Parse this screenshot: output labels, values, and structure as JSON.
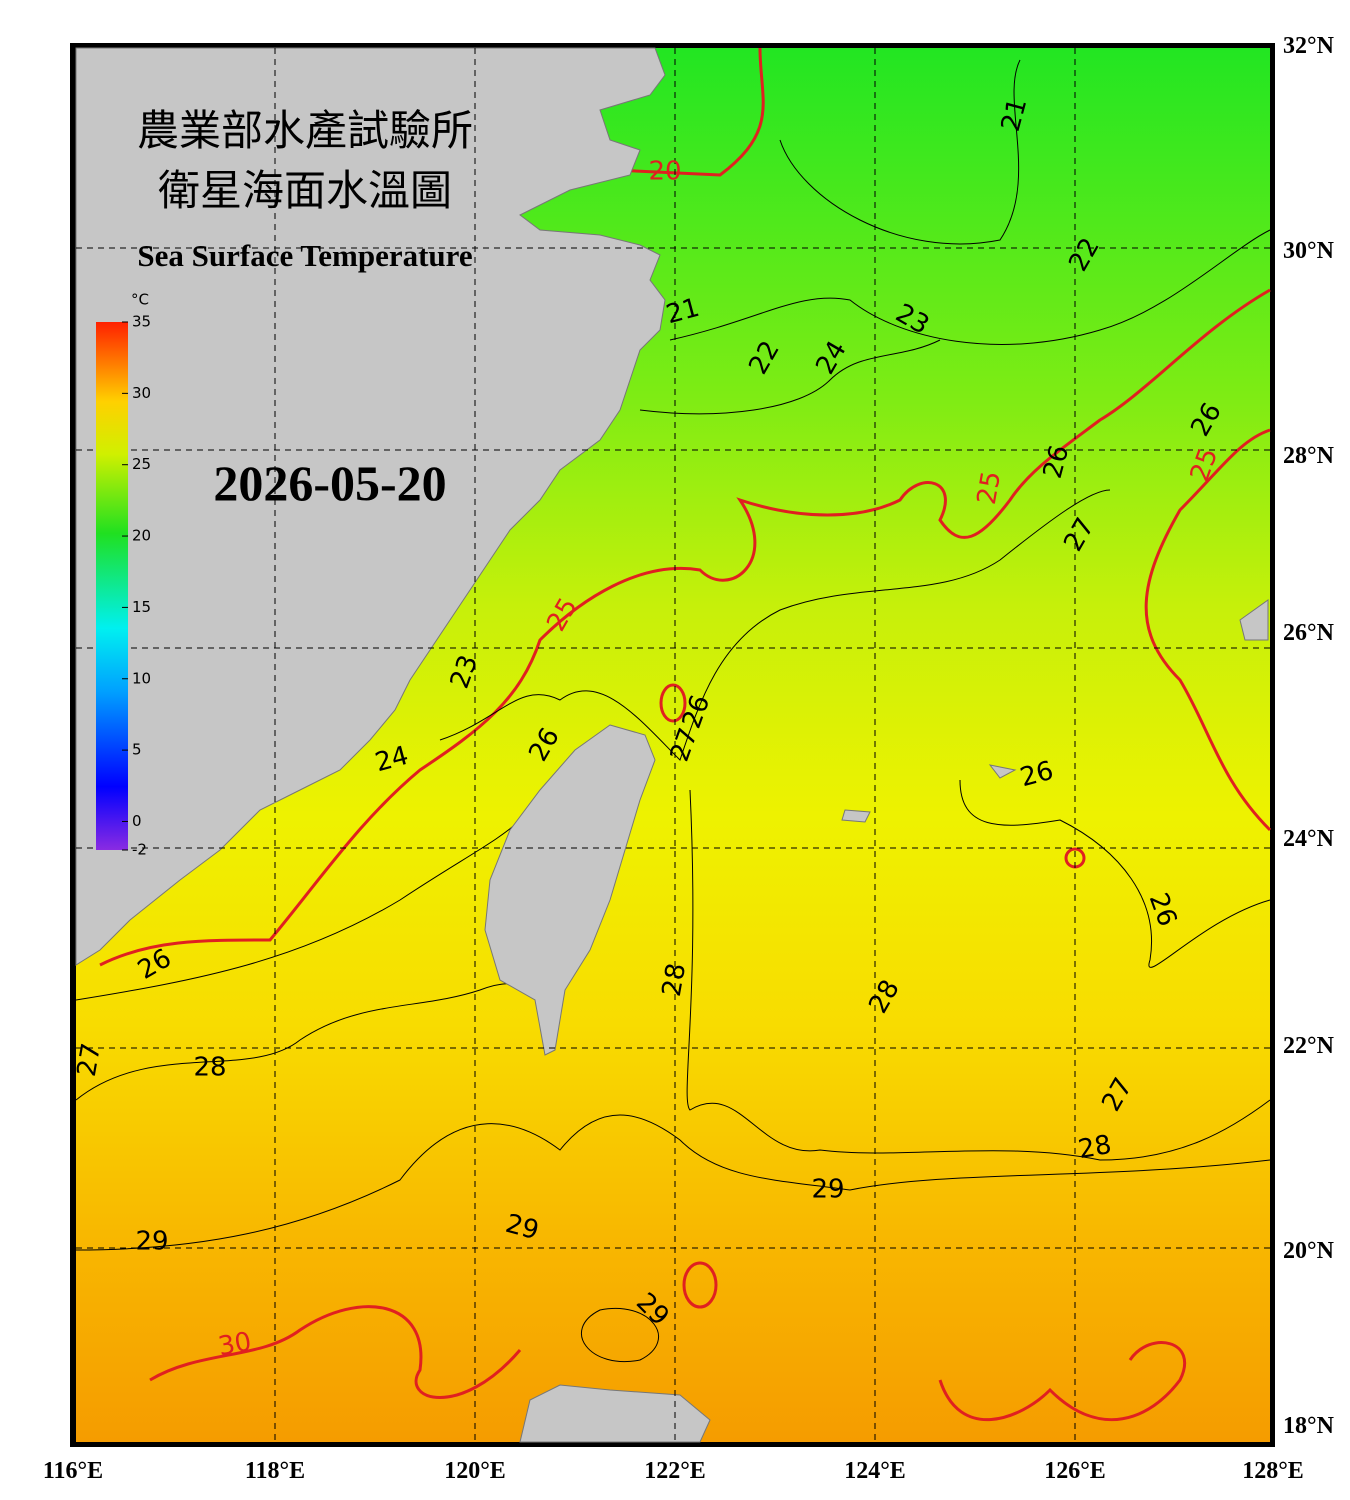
{
  "title": [
    "農業部水產試驗所",
    "衛星海面水溫圖"
  ],
  "subtitle": "Sea Surface Temperature",
  "date": "2026-05-20",
  "colorbar": {
    "unit": "°C",
    "lim": [
      -2,
      35
    ],
    "ticks": [
      35,
      30,
      25,
      20,
      15,
      10,
      5,
      0,
      -2
    ]
  },
  "lon_labels": [
    "116°E",
    "118°E",
    "120°E",
    "122°E",
    "124°E",
    "126°E",
    "128°E"
  ],
  "lat_labels": [
    "32°N",
    "30°N",
    "28°N",
    "26°N",
    "24°N",
    "22°N",
    "20°N",
    "18°N"
  ],
  "contour_labels": [
    21,
    20,
    22,
    21,
    23,
    22,
    24,
    26,
    26,
    25,
    25,
    27,
    25,
    23,
    26,
    27,
    26,
    24,
    26,
    26,
    26,
    28,
    28,
    27,
    28,
    27,
    28,
    29,
    29,
    29,
    29,
    30
  ]
}
